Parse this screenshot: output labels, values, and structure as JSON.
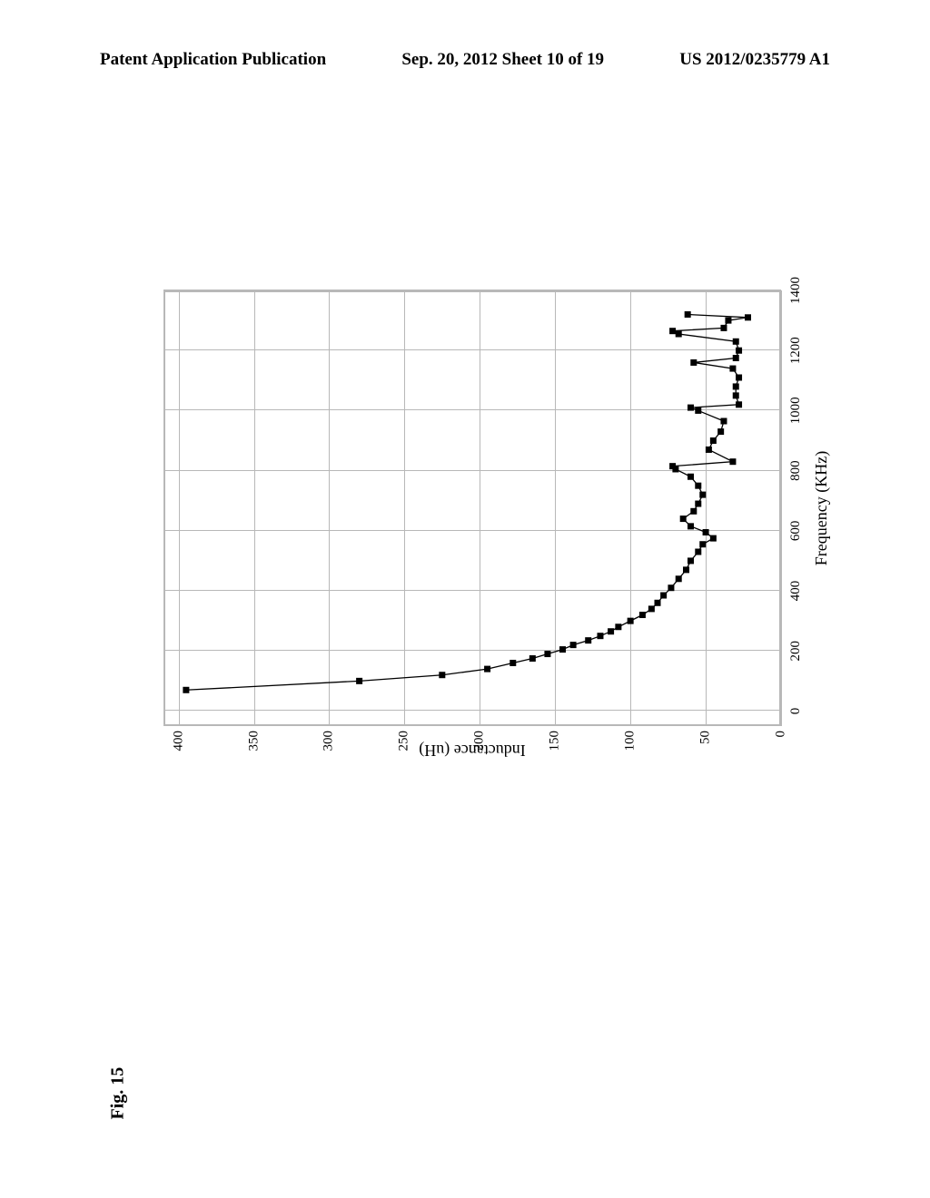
{
  "header": {
    "left": "Patent Application Publication",
    "center": "Sep. 20, 2012  Sheet 10 of 19",
    "right": "US 2012/0235779 A1"
  },
  "figure_label": "Fig. 15",
  "chart": {
    "type": "scatter",
    "xlabel": "Frequency (KHz)",
    "ylabel": "Inductance (uH)",
    "xlim": [
      -50,
      1400
    ],
    "ylim": [
      0,
      410
    ],
    "xtick_values": [
      0,
      200,
      400,
      600,
      800,
      1000,
      1200,
      1400
    ],
    "xtick_labels": [
      "0",
      "200",
      "400",
      "600",
      "800",
      "1000",
      "1200",
      "1400"
    ],
    "ytick_values": [
      0,
      50,
      100,
      150,
      200,
      250,
      300,
      350,
      400
    ],
    "ytick_labels": [
      "0",
      "50",
      "100",
      "150",
      "200",
      "250",
      "300",
      "350",
      "400"
    ],
    "grid_color": "#b8b8b8",
    "line_color": "#000000",
    "marker_color": "#000000",
    "marker_style": "square",
    "marker_size": 7,
    "line_width": 1.3,
    "background_color": "#ffffff",
    "label_fontsize": 18,
    "tick_fontsize": 15,
    "data_points": [
      {
        "x": 70,
        "y": 395
      },
      {
        "x": 100,
        "y": 280
      },
      {
        "x": 120,
        "y": 225
      },
      {
        "x": 140,
        "y": 195
      },
      {
        "x": 160,
        "y": 178
      },
      {
        "x": 175,
        "y": 165
      },
      {
        "x": 190,
        "y": 155
      },
      {
        "x": 205,
        "y": 145
      },
      {
        "x": 220,
        "y": 138
      },
      {
        "x": 235,
        "y": 128
      },
      {
        "x": 250,
        "y": 120
      },
      {
        "x": 265,
        "y": 113
      },
      {
        "x": 280,
        "y": 108
      },
      {
        "x": 300,
        "y": 100
      },
      {
        "x": 320,
        "y": 92
      },
      {
        "x": 340,
        "y": 86
      },
      {
        "x": 360,
        "y": 82
      },
      {
        "x": 385,
        "y": 78
      },
      {
        "x": 410,
        "y": 73
      },
      {
        "x": 440,
        "y": 68
      },
      {
        "x": 470,
        "y": 63
      },
      {
        "x": 500,
        "y": 60
      },
      {
        "x": 530,
        "y": 55
      },
      {
        "x": 555,
        "y": 52
      },
      {
        "x": 575,
        "y": 45
      },
      {
        "x": 595,
        "y": 50
      },
      {
        "x": 615,
        "y": 60
      },
      {
        "x": 640,
        "y": 65
      },
      {
        "x": 665,
        "y": 58
      },
      {
        "x": 690,
        "y": 55
      },
      {
        "x": 720,
        "y": 52
      },
      {
        "x": 750,
        "y": 55
      },
      {
        "x": 780,
        "y": 60
      },
      {
        "x": 805,
        "y": 70
      },
      {
        "x": 815,
        "y": 72
      },
      {
        "x": 830,
        "y": 32
      },
      {
        "x": 870,
        "y": 48
      },
      {
        "x": 900,
        "y": 45
      },
      {
        "x": 930,
        "y": 40
      },
      {
        "x": 965,
        "y": 38
      },
      {
        "x": 1000,
        "y": 55
      },
      {
        "x": 1010,
        "y": 60
      },
      {
        "x": 1020,
        "y": 28
      },
      {
        "x": 1050,
        "y": 30
      },
      {
        "x": 1080,
        "y": 30
      },
      {
        "x": 1110,
        "y": 28
      },
      {
        "x": 1140,
        "y": 32
      },
      {
        "x": 1160,
        "y": 58
      },
      {
        "x": 1175,
        "y": 30
      },
      {
        "x": 1200,
        "y": 28
      },
      {
        "x": 1230,
        "y": 30
      },
      {
        "x": 1255,
        "y": 68
      },
      {
        "x": 1265,
        "y": 72
      },
      {
        "x": 1275,
        "y": 38
      },
      {
        "x": 1300,
        "y": 35
      },
      {
        "x": 1310,
        "y": 22
      },
      {
        "x": 1320,
        "y": 62
      }
    ]
  }
}
